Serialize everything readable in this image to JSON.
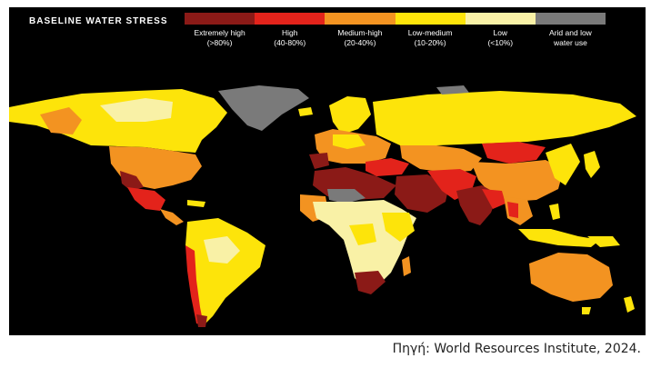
{
  "map": {
    "title": "BASELINE WATER STRESS",
    "background_color": "#000000",
    "legend": [
      {
        "label": "Extremely high",
        "range": "(>80%)",
        "color": "#8b1a17"
      },
      {
        "label": "High",
        "range": "(40-80%)",
        "color": "#e3231b"
      },
      {
        "label": "Medium-high",
        "range": "(20-40%)",
        "color": "#f39321"
      },
      {
        "label": "Low-medium",
        "range": "(10-20%)",
        "color": "#fde40a"
      },
      {
        "label": "Low",
        "range": "(<10%)",
        "color": "#f9f1a6"
      },
      {
        "label": "Arid and low",
        "range": "water use",
        "color": "#7a7a7a"
      }
    ]
  },
  "source": "Πηγή: World Resources Institute, 2024."
}
